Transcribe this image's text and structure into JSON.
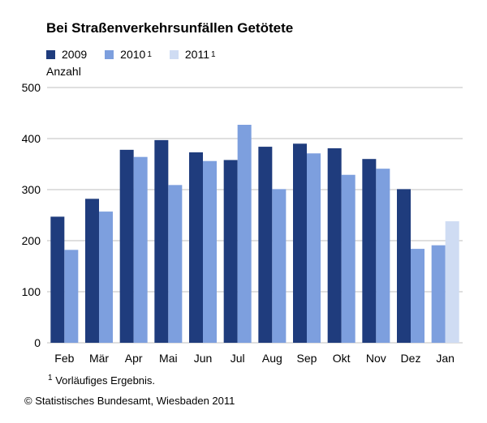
{
  "title": "Bei Straßenverkehrsunfällen Getötete",
  "legend": [
    {
      "label": "2009",
      "sup": ""
    },
    {
      "label": "2010",
      "sup": "1"
    },
    {
      "label": "2011",
      "sup": "1"
    }
  ],
  "unit_label": "Anzahl",
  "footnote": {
    "mark": "1",
    "text": "Vorläufiges Ergebnis."
  },
  "source": "© Statistisches Bundesamt, Wiesbaden 2011",
  "colors": {
    "s2009": "#1f3c7d",
    "s2010": "#7d9fde",
    "s2011": "#cfdcf3",
    "grid": "#bfbfbf"
  },
  "chart_data": {
    "type": "bar",
    "title": "Bei Straßenverkehrsunfällen Getötete",
    "ylabel": "Anzahl",
    "xlabel": "",
    "categories": [
      "Feb",
      "Mär",
      "Apr",
      "Mai",
      "Jun",
      "Jul",
      "Aug",
      "Sep",
      "Okt",
      "Nov",
      "Dez",
      "Jan"
    ],
    "series": [
      {
        "name": "2009",
        "values": [
          247,
          282,
          378,
          397,
          373,
          358,
          384,
          390,
          381,
          360,
          301,
          null
        ]
      },
      {
        "name": "2010",
        "values": [
          182,
          257,
          364,
          309,
          356,
          427,
          301,
          371,
          329,
          341,
          184,
          191
        ]
      },
      {
        "name": "2011",
        "values": [
          null,
          null,
          null,
          null,
          null,
          null,
          null,
          null,
          null,
          null,
          null,
          238
        ]
      }
    ],
    "ylim": [
      0,
      500
    ],
    "yticks": [
      0,
      100,
      200,
      300,
      400,
      500
    ],
    "grid": true,
    "legend_position": "top-left"
  }
}
